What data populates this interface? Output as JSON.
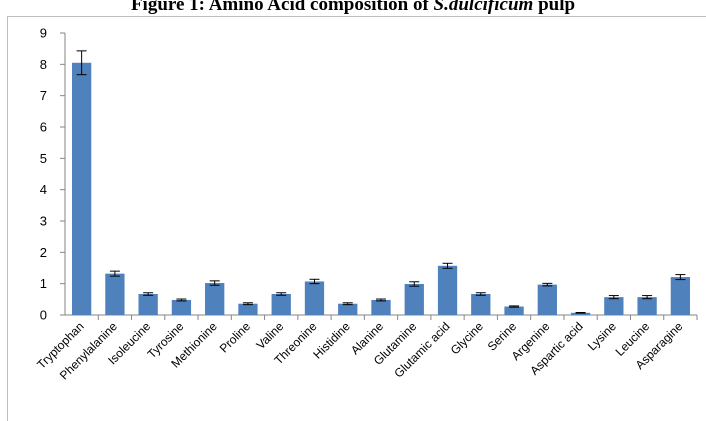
{
  "figure": {
    "title_prefix": "Figure 1: Amino Acid composition of ",
    "title_species": "S.dulcificum",
    "title_suffix": " pulp"
  },
  "colors": {
    "bar": "#4f81bd",
    "axis": "#868686",
    "error_bar": "#000000"
  },
  "chart_data": {
    "type": "bar",
    "title": "",
    "xlabel": "",
    "ylabel": "",
    "ylim": [
      0,
      9
    ],
    "yticks": [
      0,
      1,
      2,
      3,
      4,
      5,
      6,
      7,
      8,
      9
    ],
    "grid": false,
    "legend": "none",
    "categories": [
      "Tryptophan",
      "Phenylalanine",
      "Isoleucine",
      "Tyrosine",
      "Methionine",
      "Proline",
      "Valine",
      "Threonine",
      "Histidine",
      "Alanine",
      "Glutamine",
      "Glutamic acid",
      "Glycine",
      "Serine",
      "Argenine",
      "Aspartic acid",
      "Lysine",
      "Leucine",
      "Asparagine"
    ],
    "values": [
      8.05,
      1.32,
      0.67,
      0.48,
      1.02,
      0.36,
      0.67,
      1.07,
      0.36,
      0.48,
      0.99,
      1.57,
      0.67,
      0.27,
      0.97,
      0.07,
      0.57,
      0.57,
      1.21
    ],
    "errors": [
      0.38,
      0.08,
      0.04,
      0.03,
      0.07,
      0.03,
      0.04,
      0.07,
      0.03,
      0.03,
      0.07,
      0.08,
      0.04,
      0.02,
      0.04,
      0.01,
      0.05,
      0.05,
      0.08
    ]
  }
}
